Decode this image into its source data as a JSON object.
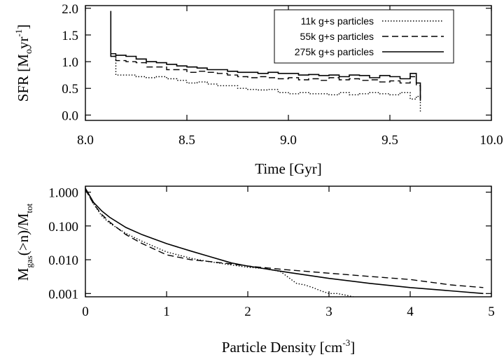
{
  "chart_data": [
    {
      "type": "line",
      "ylabel_parts": [
        "SFR [M",
        "o",
        "yr",
        "-1",
        "]"
      ],
      "xlabel": "Time [Gyr]",
      "xlim": [
        8.0,
        10.0
      ],
      "ylim": [
        -0.1,
        2.05
      ],
      "xticks": [
        8.0,
        8.5,
        9.0,
        9.5,
        10.0
      ],
      "xtick_labels": [
        "8.0",
        "8.5",
        "9.0",
        "9.5",
        "10.0"
      ],
      "yticks": [
        0.0,
        0.5,
        1.0,
        1.5,
        2.0
      ],
      "ytick_labels": [
        "0.0",
        "0.5",
        "1.0",
        "1.5",
        "2.0"
      ],
      "legend": [
        "11k g+s particles",
        "55k g+s particles",
        "275k g+s particles"
      ],
      "series": [
        {
          "name": "11k g+s particles",
          "style": "dotted",
          "x": [
            8.125,
            8.125,
            8.15,
            8.15,
            8.2,
            8.25,
            8.3,
            8.35,
            8.4,
            8.45,
            8.5,
            8.55,
            8.6,
            8.65,
            8.7,
            8.75,
            8.8,
            8.85,
            8.9,
            8.95,
            9.0,
            9.05,
            9.1,
            9.15,
            9.2,
            9.25,
            9.3,
            9.35,
            9.4,
            9.45,
            9.5,
            9.55,
            9.6,
            9.63,
            9.65
          ],
          "y": [
            1.15,
            1.1,
            0.8,
            0.75,
            0.75,
            0.72,
            0.7,
            0.72,
            0.68,
            0.65,
            0.6,
            0.62,
            0.58,
            0.55,
            0.55,
            0.5,
            0.48,
            0.47,
            0.48,
            0.42,
            0.4,
            0.42,
            0.4,
            0.4,
            0.38,
            0.42,
            0.38,
            0.4,
            0.42,
            0.4,
            0.38,
            0.42,
            0.3,
            0.35,
            0.05
          ]
        },
        {
          "name": "55k g+s particles",
          "style": "dashed",
          "x": [
            8.125,
            8.15,
            8.2,
            8.25,
            8.3,
            8.35,
            8.4,
            8.45,
            8.5,
            8.55,
            8.6,
            8.65,
            8.7,
            8.75,
            8.8,
            8.85,
            8.9,
            8.95,
            9.0,
            9.05,
            9.1,
            9.15,
            9.2,
            9.25,
            9.3,
            9.35,
            9.4,
            9.45,
            9.5,
            9.55,
            9.6,
            9.63,
            9.65
          ],
          "y": [
            1.15,
            1.02,
            1.0,
            0.98,
            0.9,
            0.9,
            0.85,
            0.85,
            0.8,
            0.82,
            0.8,
            0.78,
            0.75,
            0.72,
            0.7,
            0.72,
            0.7,
            0.68,
            0.7,
            0.66,
            0.68,
            0.65,
            0.7,
            0.66,
            0.68,
            0.65,
            0.66,
            0.62,
            0.64,
            0.6,
            0.72,
            0.55,
            0.2
          ]
        },
        {
          "name": "275k g+s particles",
          "style": "solid",
          "x": [
            8.125,
            8.125,
            8.15,
            8.2,
            8.25,
            8.3,
            8.35,
            8.4,
            8.45,
            8.5,
            8.55,
            8.6,
            8.65,
            8.7,
            8.75,
            8.8,
            8.85,
            8.9,
            8.95,
            9.0,
            9.05,
            9.1,
            9.15,
            9.2,
            9.25,
            9.3,
            9.35,
            9.4,
            9.45,
            9.5,
            9.55,
            9.6,
            9.63,
            9.65
          ],
          "y": [
            1.95,
            1.1,
            1.12,
            1.1,
            1.05,
            1.0,
            0.98,
            0.95,
            0.92,
            0.9,
            0.88,
            0.85,
            0.85,
            0.82,
            0.8,
            0.8,
            0.78,
            0.8,
            0.78,
            0.78,
            0.75,
            0.76,
            0.74,
            0.75,
            0.72,
            0.75,
            0.74,
            0.7,
            0.74,
            0.72,
            0.68,
            0.78,
            0.6,
            0.3
          ]
        }
      ]
    },
    {
      "type": "line",
      "ylabel_parts": [
        "M",
        "gas",
        "(>n)/M",
        "tot"
      ],
      "xlabel_parts": [
        "Particle Density [cm",
        "-3",
        "]"
      ],
      "xlim": [
        0,
        5
      ],
      "yscale": "log",
      "ylim": [
        0.0008,
        1.5
      ],
      "xticks": [
        0,
        1,
        2,
        3,
        4,
        5
      ],
      "xtick_labels": [
        "0",
        "1",
        "2",
        "3",
        "4",
        "5"
      ],
      "yticks": [
        0.001,
        0.01,
        0.1,
        1.0
      ],
      "ytick_labels": [
        "0.001",
        "0.010",
        "0.100",
        "1.000"
      ],
      "series": [
        {
          "name": "11k g+s particles",
          "style": "dotted",
          "x": [
            0,
            0.1,
            0.2,
            0.3,
            0.5,
            0.7,
            1.0,
            1.3,
            1.5,
            1.8,
            2.0,
            2.2,
            2.4,
            2.5,
            2.6,
            2.7,
            2.8,
            2.9,
            3.0,
            3.1,
            3.2,
            3.3
          ],
          "y": [
            1.2,
            0.45,
            0.2,
            0.12,
            0.06,
            0.035,
            0.017,
            0.011,
            0.009,
            0.007,
            0.006,
            0.0055,
            0.0045,
            0.003,
            0.002,
            0.0018,
            0.0015,
            0.0012,
            0.001,
            0.001,
            0.0009,
            0.0008
          ]
        },
        {
          "name": "55k g+s particles",
          "style": "dashed",
          "x": [
            0,
            0.1,
            0.2,
            0.3,
            0.5,
            0.7,
            1.0,
            1.3,
            1.5,
            1.8,
            2.0,
            2.5,
            3.0,
            3.5,
            4.0,
            4.5,
            4.9
          ],
          "y": [
            1.2,
            0.45,
            0.22,
            0.13,
            0.055,
            0.03,
            0.014,
            0.01,
            0.009,
            0.0075,
            0.0065,
            0.005,
            0.004,
            0.0032,
            0.0026,
            0.0018,
            0.0015
          ]
        },
        {
          "name": "275k g+s particles",
          "style": "solid",
          "x": [
            0,
            0.1,
            0.2,
            0.3,
            0.5,
            0.7,
            1.0,
            1.3,
            1.5,
            1.8,
            2.0,
            2.5,
            3.0,
            3.5,
            4.0,
            4.5,
            4.9
          ],
          "y": [
            1.3,
            0.5,
            0.28,
            0.18,
            0.09,
            0.055,
            0.03,
            0.018,
            0.013,
            0.008,
            0.0065,
            0.0042,
            0.0028,
            0.002,
            0.0015,
            0.0012,
            0.001
          ]
        }
      ]
    }
  ]
}
